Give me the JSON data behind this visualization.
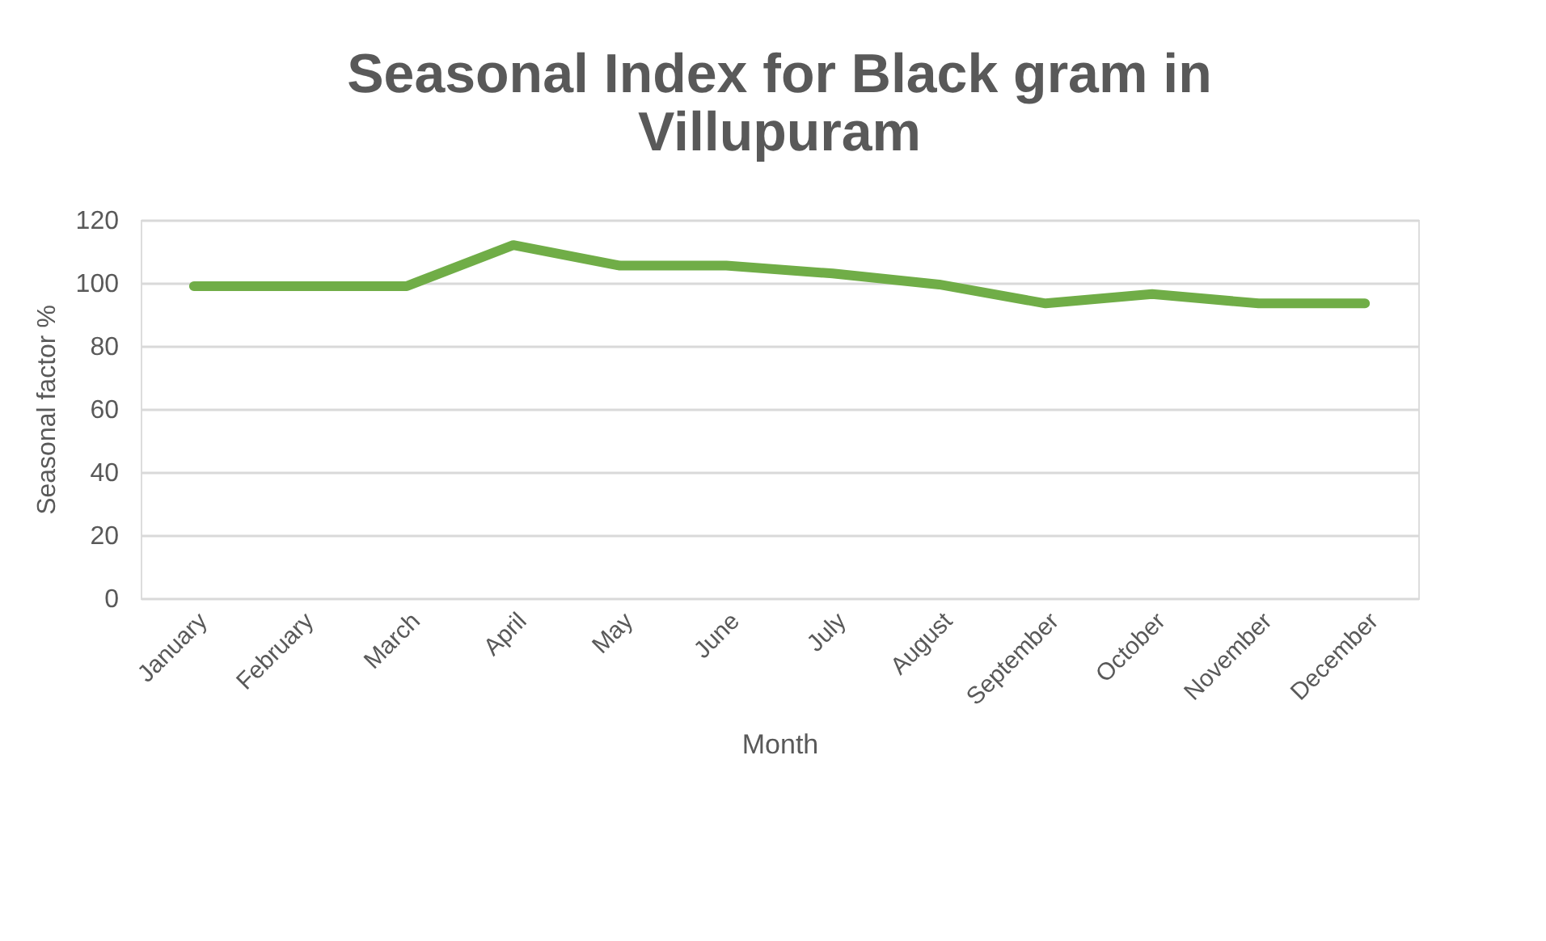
{
  "chart_data": {
    "type": "line",
    "title": [
      "Seasonal Index for Black gram in",
      "Villupuram"
    ],
    "xlabel": "Month",
    "ylabel": "Seasonal factor %",
    "categories": [
      "January",
      "February",
      "March",
      "April",
      "May",
      "June",
      "July",
      "August",
      "September",
      "October",
      "November",
      "December"
    ],
    "series": [
      {
        "color": "#70ad47",
        "values": [
          99,
          99,
          99,
          112,
          105.5,
          105.5,
          103,
          99.5,
          93.5,
          96.5,
          93.5,
          93.5
        ]
      }
    ],
    "ylim": [
      0,
      120
    ],
    "yticks": [
      0,
      20,
      40,
      60,
      80,
      100,
      120
    ],
    "grid": "y",
    "legend": false,
    "marker": "none",
    "line_style": "solid"
  }
}
